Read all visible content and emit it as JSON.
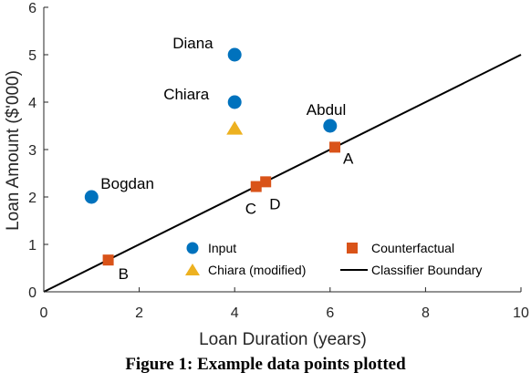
{
  "chart_data": {
    "type": "scatter",
    "xlabel": "Loan Duration (years)",
    "ylabel": "Loan Amount ($'000)",
    "xlim": [
      0,
      10
    ],
    "ylim": [
      0,
      6
    ],
    "xticks": [
      "0",
      "2",
      "4",
      "6",
      "8",
      "10"
    ],
    "yticks": [
      "0",
      "1",
      "2",
      "3",
      "4",
      "5",
      "6"
    ],
    "grid": false,
    "legend_position": "bottom-right",
    "series": [
      {
        "name": "Input",
        "marker": "circle",
        "color": "#0072BD",
        "points": [
          {
            "x": 4,
            "y": 5,
            "label": "Diana"
          },
          {
            "x": 4,
            "y": 4,
            "label": "Chiara"
          },
          {
            "x": 6,
            "y": 3.5,
            "label": "Abdul"
          },
          {
            "x": 1,
            "y": 2,
            "label": "Bogdan"
          }
        ]
      },
      {
        "name": "Counterfactual",
        "marker": "square",
        "color": "#D95319",
        "points": [
          {
            "x": 6.1,
            "y": 3.05,
            "label": "A"
          },
          {
            "x": 1.35,
            "y": 0.67,
            "label": "B"
          },
          {
            "x": 4.45,
            "y": 2.22,
            "label": "C"
          },
          {
            "x": 4.65,
            "y": 2.32,
            "label": "D"
          }
        ]
      },
      {
        "name": "Chiara (modified)",
        "marker": "triangle",
        "color": "#EDB120",
        "points": [
          {
            "x": 4,
            "y": 3.45
          }
        ]
      },
      {
        "name": "Classifier Boundary",
        "type": "line",
        "color": "#000000",
        "x": [
          0,
          10
        ],
        "y": [
          0,
          5
        ]
      }
    ]
  },
  "caption": "Figure 1: Example data points plotted"
}
